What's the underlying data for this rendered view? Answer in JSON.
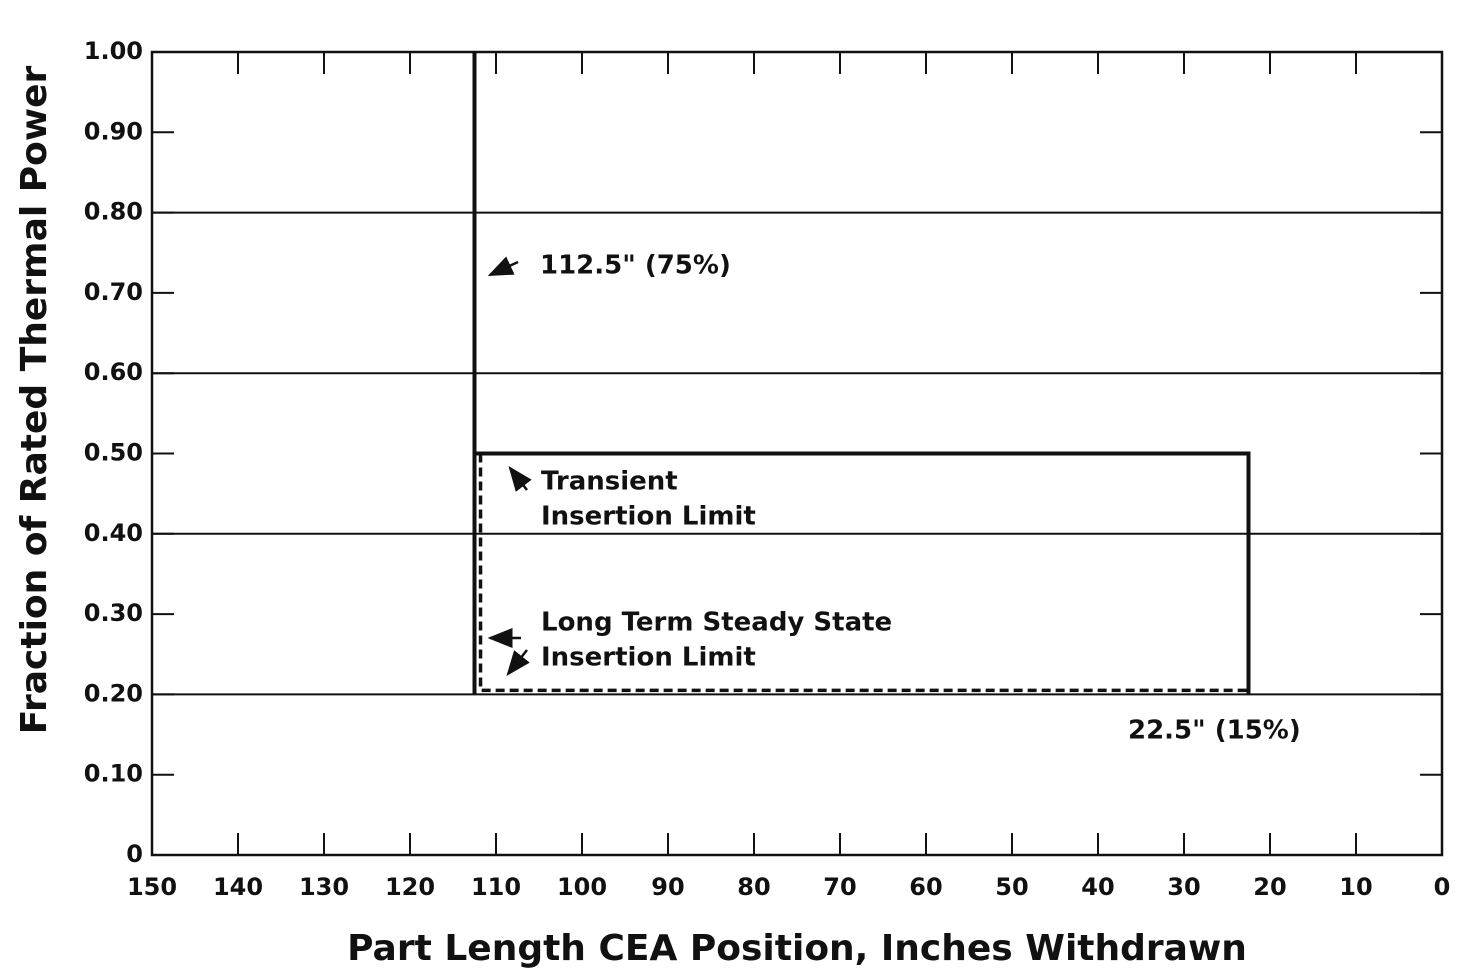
{
  "chart_data": {
    "type": "line",
    "xlabel": "Part Length CEA Position, Inches Withdrawn",
    "ylabel": "Fraction of Rated Thermal Power",
    "xlim": [
      150,
      0
    ],
    "xticks": [
      150,
      140,
      130,
      120,
      110,
      100,
      90,
      80,
      70,
      60,
      50,
      40,
      30,
      20,
      10,
      0
    ],
    "ylim": [
      0,
      1.0
    ],
    "yticks": [
      0,
      {
        "value": 0.1,
        "label": "0.10"
      },
      {
        "value": 0.2,
        "label": "0.20"
      },
      {
        "value": 0.3,
        "label": "0.30"
      },
      {
        "value": 0.4,
        "label": "0.40"
      },
      {
        "value": 0.5,
        "label": "0.50"
      },
      {
        "value": 0.6,
        "label": "0.60"
      },
      {
        "value": 0.7,
        "label": "0.70"
      },
      {
        "value": 0.8,
        "label": "0.80"
      },
      {
        "value": 0.9,
        "label": "0.90"
      },
      {
        "value": 1.0,
        "label": "1.00"
      }
    ],
    "ygrid": [
      0.2,
      0.4,
      0.6,
      0.8
    ],
    "series": [
      {
        "color": "#111111",
        "style": "solid",
        "x": [
          112.5,
          112.5,
          null,
          112.5,
          22.5,
          22.5
        ],
        "values": [
          1.0,
          0.2,
          null,
          0.5,
          0.5,
          0.2
        ]
      },
      {
        "color": "#111111",
        "style": "dashed",
        "x": [
          111.8,
          111.8,
          22.5
        ],
        "values": [
          0.5,
          0.205,
          0.205
        ]
      }
    ],
    "annotations": [
      "112.5\"  (75%)",
      "Transient",
      "Insertion Limit",
      "Long Term Steady State",
      "Insertion Limit",
      "22.5\"  (15%)"
    ]
  }
}
